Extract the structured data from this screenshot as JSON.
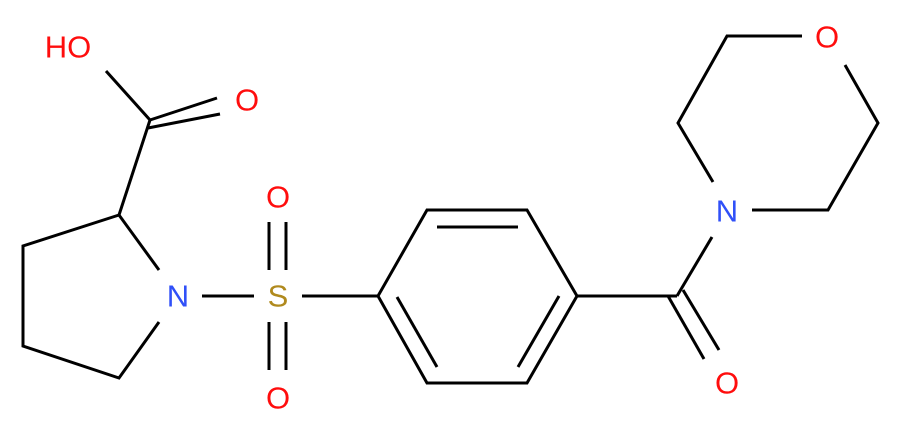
{
  "atoms": {
    "hydroxyl": "HO",
    "carboxyl_oxygen": "O",
    "pyrrolidine_nitrogen": "N",
    "sulfur": "S",
    "sulfonyl_oxygen_top": "O",
    "sulfonyl_oxygen_bottom": "O",
    "amide_oxygen": "O",
    "morpholine_nitrogen": "N",
    "morpholine_oxygen": "O"
  },
  "colors": {
    "oxygen": "#ff0d0d",
    "nitrogen": "#3050f8",
    "sulfur": "#b08a1e",
    "bond": "#000000"
  }
}
